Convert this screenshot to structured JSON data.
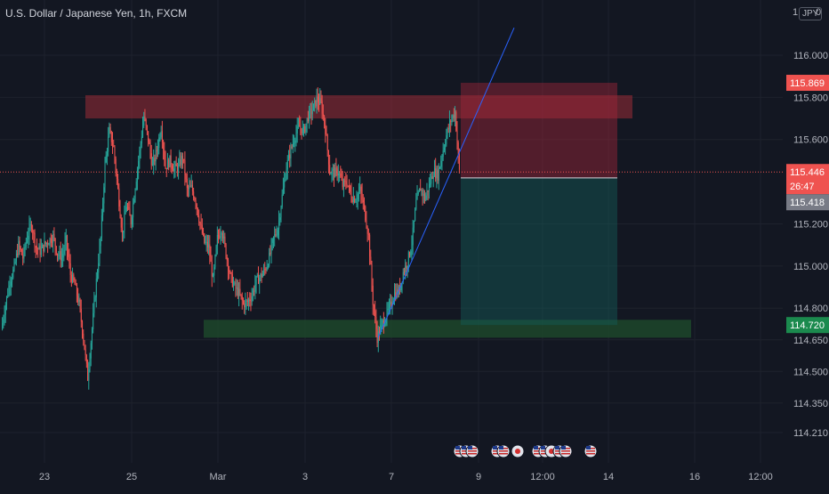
{
  "header": {
    "title": "U.S. Dollar / Japanese Yen, 1h, FXCM",
    "corner_prefix": "1",
    "currency_badge": "JPY",
    "corner_suffix": "0"
  },
  "colors": {
    "background": "#131722",
    "grid": "#1e222d",
    "up": "#26a69a",
    "down": "#ef5350",
    "text": "#b2b5be",
    "trendline": "#2962ff",
    "resistance_zone": "#9a2b36",
    "support_zone": "#1f4d2c",
    "stop_zone": "#a0263a",
    "target_zone": "#155e58"
  },
  "chart_data": {
    "type": "candlestick",
    "symbol": "U.S. Dollar / Japanese Yen",
    "interval": "1h",
    "source": "FXCM",
    "x_tick_labels": [
      "23",
      "25",
      "Mar",
      "3",
      "7",
      "9",
      "12:00",
      "14",
      "16",
      "12:00"
    ],
    "y_tick_labels": [
      "116.000",
      "115.800",
      "115.600",
      "115.200",
      "115.000",
      "114.800",
      "114.650",
      "114.500",
      "114.350",
      "114.210"
    ],
    "y_tick_values": [
      116.0,
      115.8,
      115.6,
      115.2,
      115.0,
      114.8,
      114.65,
      114.5,
      114.35,
      114.21
    ],
    "ylim": [
      114.21,
      116.0
    ],
    "price_labels": [
      {
        "text": "115.869",
        "value": 115.869,
        "color": "#ef5350"
      },
      {
        "text": "115.446",
        "value": 115.446,
        "color": "#ef5350"
      },
      {
        "text": "26:47",
        "value": 115.418,
        "color": "#ef5350"
      },
      {
        "text": "115.418",
        "value": 115.418,
        "color": "#787b86"
      },
      {
        "text": "114.720",
        "value": 114.72,
        "color": "#1b8a4e"
      }
    ],
    "current_price": 115.446,
    "resistance_zone": [
      115.7,
      115.81
    ],
    "support_zone": [
      114.66,
      114.745
    ],
    "position": {
      "entry": 115.418,
      "stop": 115.869,
      "target": 114.72
    },
    "trendline": {
      "from_price": 114.66,
      "to_price": 116.13
    },
    "series_anchors": [
      114.7,
      114.82,
      114.93,
      114.99,
      115.1,
      115.04,
      115.14,
      115.2,
      115.09,
      115.07,
      115.1,
      115.12,
      115.14,
      115.06,
      115.04,
      115.12,
      114.96,
      114.91,
      114.82,
      114.66,
      114.47,
      114.7,
      114.93,
      115.13,
      115.48,
      115.64,
      115.56,
      115.36,
      115.15,
      115.29,
      115.21,
      115.38,
      115.54,
      115.71,
      115.6,
      115.47,
      115.55,
      115.66,
      115.47,
      115.5,
      115.46,
      115.47,
      115.52,
      115.36,
      115.37,
      115.31,
      115.2,
      115.11,
      115.09,
      114.93,
      115.13,
      115.18,
      115.06,
      114.95,
      114.9,
      114.87,
      114.82,
      114.83,
      114.86,
      114.93,
      114.95,
      114.98,
      115.04,
      115.13,
      115.18,
      115.33,
      115.47,
      115.55,
      115.62,
      115.66,
      115.64,
      115.71,
      115.74,
      115.79,
      115.77,
      115.65,
      115.45,
      115.44,
      115.45,
      115.38,
      115.4,
      115.33,
      115.32,
      115.36,
      115.27,
      115.14,
      114.83,
      114.66,
      114.72,
      114.76,
      114.81,
      114.87,
      114.88,
      114.97,
      115.02,
      115.11,
      115.3,
      115.37,
      115.32,
      115.38,
      115.45,
      115.43,
      115.53,
      115.62,
      115.69,
      115.73,
      115.45
    ]
  },
  "event_icons": [
    "us-flag-icon",
    "us-flag-icon",
    "us-flag-icon",
    "us-flag-icon",
    "us-flag-icon",
    "jp-flag-icon",
    "us-flag-icon",
    "us-flag-icon",
    "jp-flag-icon",
    "us-flag-icon",
    "us-flag-icon",
    "us-flag-icon"
  ]
}
